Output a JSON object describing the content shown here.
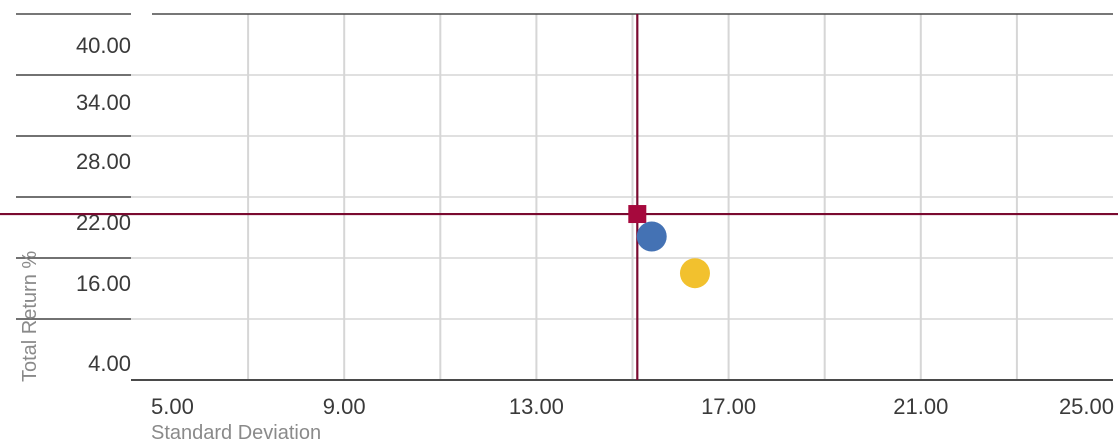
{
  "chart_data": {
    "type": "scatter",
    "title": "",
    "xlabel": "Standard Deviation",
    "ylabel": "Total Return %",
    "x_ticks": [
      "5.00",
      "9.00",
      "13.00",
      "17.00",
      "21.00",
      "25.00"
    ],
    "y_ticks": [
      "40.00",
      "34.00",
      "28.00",
      "22.00",
      "16.00",
      "4.00"
    ],
    "xlim": [
      5,
      25
    ],
    "grid": true,
    "points": [
      {
        "shape": "square",
        "color": "#A6093D",
        "x": 15.1,
        "y": 24.3,
        "crosshair": true
      },
      {
        "shape": "circle",
        "color": "#4472B4",
        "x": 15.4,
        "y": 22.1
      },
      {
        "shape": "circle",
        "color": "#F2C12E",
        "x": 16.3,
        "y": 18.5
      }
    ]
  }
}
